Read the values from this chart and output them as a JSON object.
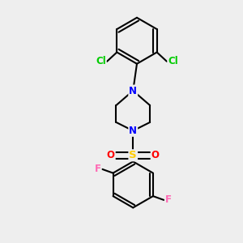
{
  "background_color": "#eeeeee",
  "atom_colors": {
    "C": "#000000",
    "N": "#0000ff",
    "S": "#ffcc00",
    "O": "#ff0000",
    "F": "#ff69b4",
    "Cl": "#00cc00"
  },
  "bond_color": "#000000",
  "bond_width": 1.5,
  "font_size": 8.5
}
